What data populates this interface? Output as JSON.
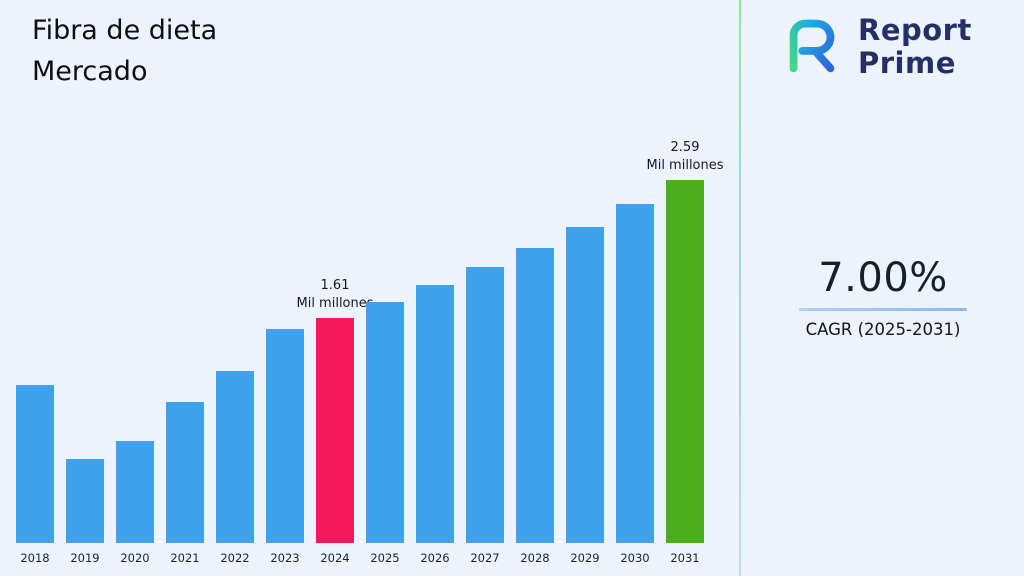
{
  "title": {
    "line1": "Fibra de dieta",
    "line2": "Mercado"
  },
  "logo": {
    "line1": "Report",
    "line2": "Prime"
  },
  "cagr": {
    "value": "7.00%",
    "label": "CAGR (2025-2031)"
  },
  "chart_data": {
    "type": "bar",
    "title": "Fibra de dieta Mercado",
    "categories": [
      "2018",
      "2019",
      "2020",
      "2021",
      "2022",
      "2023",
      "2024",
      "2025",
      "2026",
      "2027",
      "2028",
      "2029",
      "2030",
      "2031"
    ],
    "values": [
      1.13,
      0.6,
      0.73,
      1.01,
      1.23,
      1.53,
      1.61,
      1.72,
      1.84,
      1.97,
      2.11,
      2.26,
      2.42,
      2.59
    ],
    "unit": "Mil millones",
    "xlabel": "",
    "ylabel": "",
    "ylim": [
      0,
      2.8
    ],
    "grid": false,
    "legend": "none",
    "default_bar_color": "#3EA2EC",
    "bar_colors_by_index": {
      "6": "#F5185D",
      "13": "#4BAF1D"
    },
    "annotations": [
      {
        "category": "2024",
        "value_label": "1.61",
        "unit_label": "Mil millones"
      },
      {
        "category": "2031",
        "value_label": "2.59",
        "unit_label": "Mil millones"
      }
    ]
  },
  "colors": {
    "background": "#edf3fb",
    "bar_default": "#3EA2EC",
    "bar_2024_highlight": "#F5185D",
    "bar_2031_highlight": "#4BAF1D",
    "divider_top": "#8ce6a0",
    "divider_bottom": "#bdd8f6",
    "cagr_underline": "#8db8ec",
    "logo_navy": "#242f66",
    "logo_gradient_green": "#3ddc84",
    "logo_gradient_blue": "#2f63d8"
  }
}
